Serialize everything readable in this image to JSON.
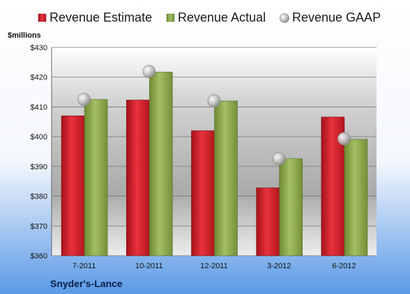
{
  "colors": {
    "estimate": "#d9232e",
    "actual": "#8faa4a",
    "gaap": "#b8b8b8",
    "background_top": "#ffffff",
    "background_bottom": "#5a9ae6"
  },
  "chart_data": {
    "type": "bar",
    "unit_label": "$millions",
    "company": "Snyder's-Lance",
    "categories": [
      "7-2011",
      "10-2011",
      "12-2011",
      "3-2012",
      "6-2012"
    ],
    "series": [
      {
        "name": "Revenue Estimate",
        "marker": "bar",
        "values": [
          407,
          412.3,
          402,
          382.8,
          406.6
        ]
      },
      {
        "name": "Revenue Actual",
        "marker": "bar",
        "values": [
          412.5,
          421.7,
          412,
          392.6,
          399.1
        ]
      },
      {
        "name": "Revenue GAAP",
        "marker": "circle",
        "values": [
          412.5,
          421.9,
          412,
          392.6,
          399.3
        ]
      }
    ],
    "ylim": [
      360,
      430
    ],
    "yticks": [
      360,
      370,
      380,
      390,
      400,
      410,
      420,
      430
    ],
    "ytick_labels": [
      "$360",
      "$370",
      "$380",
      "$390",
      "$400",
      "$410",
      "$420",
      "$430"
    ],
    "grid": true,
    "legend_position": "top"
  }
}
